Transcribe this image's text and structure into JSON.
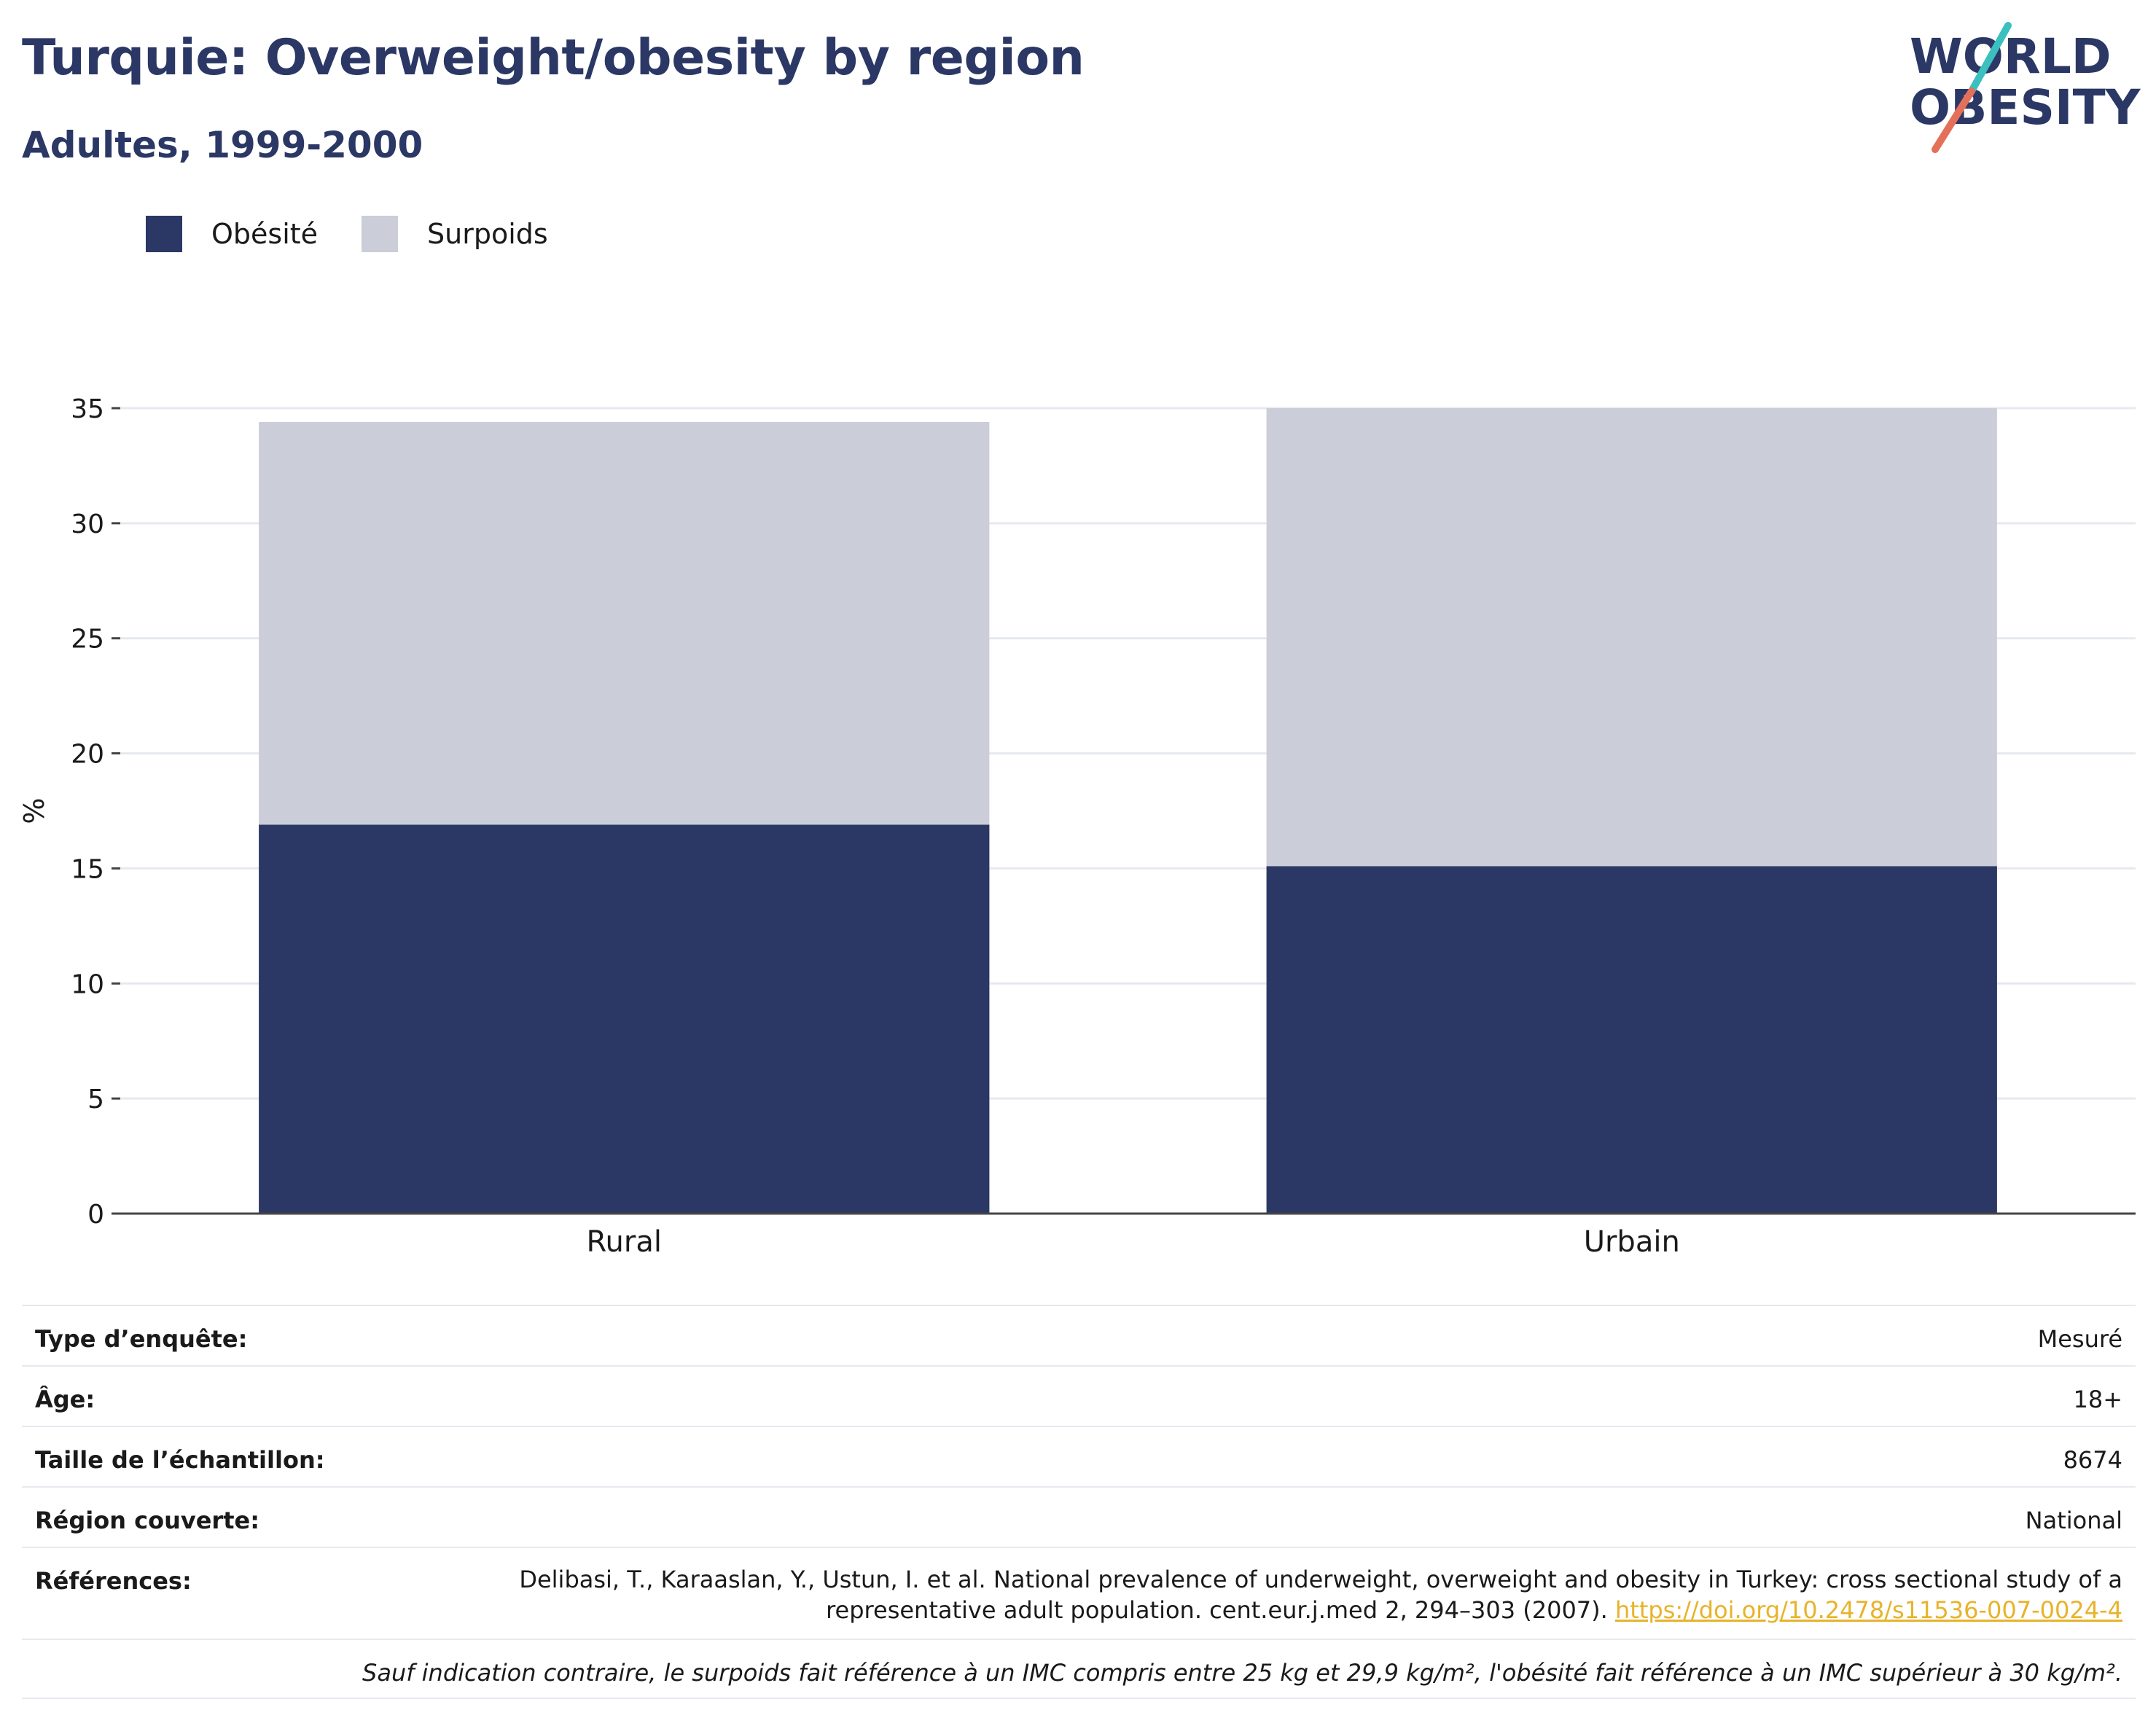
{
  "header": {
    "title": "Turquie: Overweight/obesity by region",
    "subtitle": "Adultes, 1999-2000",
    "logo_line1": "WORLD",
    "logo_line2": "OBESITY"
  },
  "legend": [
    {
      "label": "Obésité",
      "color": "#2b3764"
    },
    {
      "label": "Surpoids",
      "color": "#cbcdd8"
    }
  ],
  "chart_data": {
    "type": "bar",
    "stacked": true,
    "categories": [
      "Rural",
      "Urbain"
    ],
    "series": [
      {
        "name": "Obésité",
        "values": [
          16.9,
          15.1
        ],
        "color": "#2b3764"
      },
      {
        "name": "Surpoids",
        "values": [
          17.5,
          19.9
        ],
        "color": "#cbcdd8"
      }
    ],
    "ylabel": "%",
    "ylim": [
      0,
      35
    ],
    "yticks": [
      0,
      5,
      10,
      15,
      20,
      25,
      30,
      35
    ],
    "grid": true,
    "legend_position": "top-left"
  },
  "metadata": {
    "rows": [
      {
        "label": "Type d’enquête:",
        "value": "Mesuré"
      },
      {
        "label": "Âge:",
        "value": "18+"
      },
      {
        "label": "Taille de l’échantillon:",
        "value": "8674"
      },
      {
        "label": "Région couverte:",
        "value": "National"
      }
    ],
    "references_label": "Références:",
    "references_text": "Delibasi, T., Karaaslan, Y., Ustun, I. et al. National prevalence of underweight, overweight and obesity in Turkey: cross sectional study of a representative adult population. cent.eur.j.med 2, 294–303 (2007).",
    "references_link": "https://doi.org/10.2478/s11536-007-0024-4",
    "footnote": "Sauf indication contraire, le surpoids fait référence à un IMC compris entre 25 kg et 29,9 kg/m², l'obésité fait référence à un IMC supérieur à 30 kg/m²."
  }
}
